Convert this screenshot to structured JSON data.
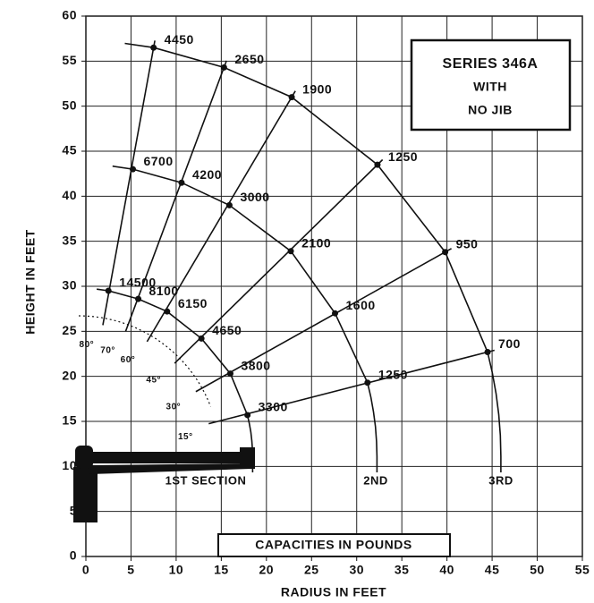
{
  "chart_data": {
    "type": "load-chart",
    "title": "SERIES 346A",
    "subtitle": [
      "WITH",
      "NO JIB"
    ],
    "caption": "CAPACITIES IN POUNDS",
    "xlabel": "RADIUS IN FEET",
    "ylabel": "HEIGHT IN FEET",
    "xlim": [
      0,
      55
    ],
    "ylim": [
      0,
      60
    ],
    "xticks": [
      0,
      5,
      10,
      15,
      20,
      25,
      30,
      35,
      40,
      45,
      50,
      55
    ],
    "yticks": [
      0,
      5,
      10,
      15,
      20,
      25,
      30,
      35,
      40,
      45,
      50,
      55,
      60
    ],
    "grid": true,
    "color": "#111111",
    "angles": [
      "80°",
      "70°",
      "60°",
      "45°",
      "30°",
      "15°"
    ],
    "series": [
      {
        "name": "1ST SECTION",
        "x": [
          2.5,
          5.8,
          9,
          12.8,
          16,
          17.9
        ],
        "y": [
          29.5,
          28.6,
          27.2,
          24.2,
          20.3,
          15.7
        ],
        "values": [
          14500,
          8100,
          6150,
          4650,
          3800,
          3300
        ]
      },
      {
        "name": "2ND",
        "x": [
          5.2,
          10.6,
          15.9,
          22.7,
          27.6,
          31.2
        ],
        "y": [
          43,
          41.5,
          39,
          33.9,
          27,
          19.3
        ],
        "values": [
          6700,
          4200,
          3000,
          2100,
          1600,
          1250
        ]
      },
      {
        "name": "3RD",
        "x": [
          7.5,
          15.3,
          22.8,
          32.3,
          39.8,
          44.5
        ],
        "y": [
          56.5,
          54.3,
          51,
          43.5,
          33.8,
          22.7
        ],
        "values": [
          4450,
          2650,
          1900,
          1250,
          950,
          700
        ]
      }
    ]
  }
}
